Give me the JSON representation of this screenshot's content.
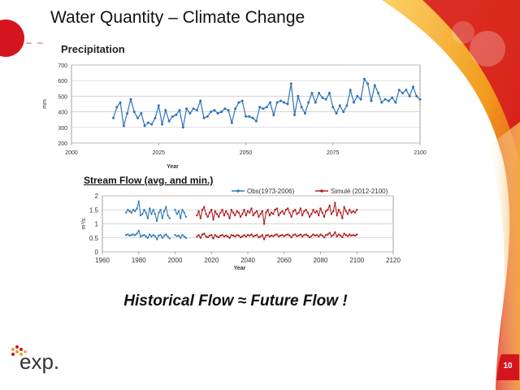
{
  "slide": {
    "title": "Water Quantity – Climate Change",
    "section_label": "Precipitation",
    "tagline": "Historical Flow ≈ Future Flow !",
    "page_number": "10",
    "logo_text": "exp.",
    "colors": {
      "accent_red": "#d5151d",
      "accent_orange": "#f29b1d",
      "precip_line": "#2e73b8",
      "obs_line": "#2f7cb5",
      "sim_line": "#b01e22"
    }
  },
  "chart_data": [
    {
      "type": "line",
      "title": "",
      "xlabel": "Year",
      "ylabel": "mm",
      "xlim": [
        2000,
        2100
      ],
      "ylim": [
        200,
        700
      ],
      "xticks": [
        2000,
        2025,
        2050,
        2075,
        2100
      ],
      "yticks": [
        200,
        300,
        400,
        500,
        600,
        700
      ],
      "grid": true,
      "series": [
        {
          "x": [
            2012,
            2013,
            2014,
            2015,
            2016,
            2017,
            2018,
            2019,
            2020,
            2021,
            2022,
            2023,
            2024,
            2025,
            2026,
            2027,
            2028,
            2029,
            2030,
            2031,
            2032,
            2033,
            2034,
            2035,
            2036,
            2037,
            2038,
            2039,
            2040,
            2041,
            2042,
            2043,
            2044,
            2045,
            2046,
            2047,
            2048,
            2049,
            2050,
            2051,
            2052,
            2053,
            2054,
            2055,
            2056,
            2057,
            2058,
            2059,
            2060,
            2061,
            2062,
            2063,
            2064,
            2065,
            2066,
            2067,
            2068,
            2069,
            2070,
            2071,
            2072,
            2073,
            2074,
            2075,
            2076,
            2077,
            2078,
            2079,
            2080,
            2081,
            2082,
            2083,
            2084,
            2085,
            2086,
            2087,
            2088,
            2089,
            2090,
            2091,
            2092,
            2093,
            2094,
            2095,
            2096,
            2097,
            2098,
            2099,
            2100
          ],
          "y": [
            360,
            430,
            460,
            310,
            390,
            480,
            400,
            360,
            390,
            310,
            330,
            320,
            360,
            440,
            320,
            410,
            340,
            370,
            380,
            410,
            300,
            420,
            390,
            420,
            410,
            470,
            360,
            370,
            400,
            410,
            390,
            400,
            420,
            410,
            330,
            420,
            460,
            470,
            370,
            370,
            360,
            340,
            430,
            420,
            430,
            460,
            380,
            460,
            470,
            460,
            450,
            580,
            380,
            500,
            430,
            390,
            460,
            520,
            460,
            520,
            490,
            480,
            520,
            430,
            390,
            440,
            400,
            440,
            540,
            460,
            500,
            480,
            610,
            580,
            470,
            570,
            520,
            460,
            480,
            470,
            490,
            460,
            540,
            520,
            540,
            500,
            560,
            500,
            480
          ]
        }
      ]
    },
    {
      "type": "line",
      "title": "Stream Flow (avg. and min.)",
      "xlabel": "Year",
      "ylabel": "m³/s",
      "xlim": [
        1960,
        2120
      ],
      "ylim": [
        0,
        2
      ],
      "xticks": [
        1960,
        1980,
        2000,
        2020,
        2040,
        2060,
        2080,
        2100,
        2120
      ],
      "yticks": [
        0,
        0.5,
        1,
        1.5,
        2
      ],
      "grid": true,
      "legend": "top-right",
      "series": [
        {
          "name": "Obs(1973-2006)",
          "x_start": 1973,
          "avg": [
            1.4,
            1.5,
            1.45,
            1.4,
            1.5,
            1.45,
            1.55,
            1.8,
            1.3,
            1.35,
            1.5,
            1.4,
            1.2,
            1.55,
            1.35,
            1.5,
            1.35,
            1.1,
            1.4,
            1.5,
            1.2,
            1.45,
            1.6,
            1.3,
            1.2,
            null,
            null,
            1.5,
            1.35,
            1.45,
            1.2,
            1.5,
            1.4,
            1.25
          ],
          "min": [
            0.6,
            0.62,
            0.58,
            0.6,
            0.62,
            0.6,
            0.65,
            0.75,
            0.55,
            0.58,
            0.6,
            0.55,
            0.5,
            0.62,
            0.55,
            0.6,
            0.56,
            0.45,
            0.58,
            0.6,
            0.5,
            0.58,
            0.62,
            0.55,
            0.48,
            null,
            null,
            0.6,
            0.56,
            0.58,
            0.5,
            0.6,
            0.55,
            0.5
          ]
        },
        {
          "name": "Simulé (2012-2100)",
          "x_start": 2012,
          "avg": [
            1.3,
            1.45,
            1.2,
            1.5,
            1.6,
            1.35,
            1.25,
            1.4,
            1.5,
            1.15,
            1.45,
            1.35,
            1.25,
            1.4,
            1.5,
            1.3,
            1.45,
            1.35,
            1.2,
            1.5,
            1.4,
            1.3,
            1.45,
            1.4,
            1.25,
            1.35,
            1.5,
            1.3,
            1.45,
            1.4,
            1.55,
            1.3,
            1.4,
            1.45,
            1.25,
            1.35,
            1.45,
            1.0,
            1.4,
            1.5,
            1.3,
            1.4,
            1.35,
            1.5,
            1.55,
            1.3,
            1.4,
            1.45,
            1.35,
            1.5,
            1.55,
            1.4,
            1.25,
            1.45,
            1.5,
            1.35,
            1.4,
            1.55,
            1.3,
            1.45,
            1.5,
            1.4,
            1.25,
            1.35,
            1.5,
            1.4,
            1.45,
            1.3,
            1.55,
            1.4,
            1.25,
            1.45,
            1.5,
            1.65,
            1.35,
            1.45,
            1.75,
            1.3,
            1.5,
            1.4,
            1.2,
            1.6,
            1.45,
            1.35,
            1.5,
            1.4,
            1.45,
            1.4,
            1.5
          ],
          "min": [
            0.55,
            0.6,
            0.5,
            0.62,
            0.65,
            0.55,
            0.52,
            0.58,
            0.6,
            0.48,
            0.6,
            0.55,
            0.52,
            0.58,
            0.6,
            0.55,
            0.58,
            0.55,
            0.5,
            0.6,
            0.58,
            0.55,
            0.6,
            0.58,
            0.52,
            0.55,
            0.6,
            0.55,
            0.6,
            0.58,
            0.62,
            0.55,
            0.58,
            0.6,
            0.52,
            0.55,
            0.6,
            0.45,
            0.58,
            0.6,
            0.55,
            0.58,
            0.56,
            0.6,
            0.62,
            0.55,
            0.58,
            0.6,
            0.56,
            0.6,
            0.62,
            0.58,
            0.52,
            0.6,
            0.62,
            0.56,
            0.58,
            0.62,
            0.55,
            0.6,
            0.62,
            0.58,
            0.52,
            0.56,
            0.62,
            0.58,
            0.6,
            0.55,
            0.62,
            0.58,
            0.52,
            0.6,
            0.62,
            0.68,
            0.56,
            0.6,
            0.7,
            0.55,
            0.62,
            0.58,
            0.52,
            0.65,
            0.6,
            0.56,
            0.62,
            0.58,
            0.6,
            0.58,
            0.62
          ]
        }
      ]
    }
  ]
}
